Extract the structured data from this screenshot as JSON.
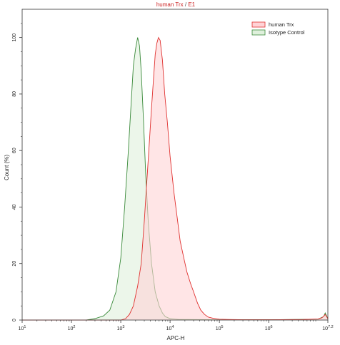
{
  "chart_data": {
    "type": "area",
    "title": {
      "part1": "human Trx",
      "separator": " / ",
      "part2": "E1"
    },
    "title_colors": {
      "part1": "#cc2222",
      "separator": "#555555",
      "part2": "#cc2222"
    },
    "xlabel": "APC-H",
    "ylabel": "Count (%)",
    "x_scale": "log",
    "xlim": [
      10,
      15848932
    ],
    "ylim": [
      0,
      110
    ],
    "x_ticks": [
      {
        "value": 10,
        "base": "10",
        "exp": "1"
      },
      {
        "value": 100,
        "base": "10",
        "exp": "2"
      },
      {
        "value": 1000,
        "base": "10",
        "exp": "3"
      },
      {
        "value": 10000,
        "base": "10",
        "exp": "4"
      },
      {
        "value": 100000,
        "base": "10",
        "exp": "5"
      },
      {
        "value": 1000000,
        "base": "10",
        "exp": "6"
      },
      {
        "value": 15848932,
        "base": "10",
        "exp": "7.2"
      }
    ],
    "y_ticks": [
      0,
      20,
      40,
      60,
      80,
      100
    ],
    "grid": false,
    "legend_position": "top-right",
    "series": [
      {
        "name": "human Trx",
        "color": "#e0312f",
        "fill": "#ffd3d6",
        "x": [
          10,
          1000,
          1250,
          1500,
          1800,
          2200,
          2600,
          3000,
          3400,
          3800,
          4200,
          4600,
          5000,
          5400,
          5800,
          6300,
          7000,
          7800,
          8800,
          10000,
          12000,
          14000,
          16000,
          19000,
          22000,
          26000,
          30000,
          36000,
          42000,
          50000,
          60000,
          75000,
          100000,
          150000,
          300000,
          1000000,
          5000000,
          10000000,
          12000000,
          13000000,
          14000000,
          15848932
        ],
        "values": [
          0,
          0,
          0.5,
          2,
          5,
          12,
          20,
          35,
          50,
          63,
          75,
          85,
          94,
          98,
          100,
          99,
          92,
          80,
          70,
          58,
          45,
          36,
          28,
          22,
          17,
          13,
          10,
          6,
          3.5,
          2,
          1,
          0.6,
          0.3,
          0.2,
          0.1,
          0.1,
          0.2,
          0.4,
          0.8,
          1.3,
          2,
          0.5
        ]
      },
      {
        "name": "Isotype Control",
        "color": "#3a8a3a",
        "fill": "#dff0dc",
        "x": [
          10,
          200,
          300,
          450,
          600,
          800,
          1000,
          1200,
          1400,
          1600,
          1800,
          2000,
          2200,
          2400,
          2600,
          2900,
          3200,
          3600,
          4200,
          5000,
          6000,
          7000,
          8000,
          10000,
          15000,
          100000,
          1000000,
          10000000,
          13000000,
          14000000,
          15848932
        ],
        "values": [
          0,
          0,
          0.5,
          1.5,
          3.5,
          10,
          22,
          40,
          58,
          75,
          90,
          96,
          100,
          97,
          88,
          70,
          52,
          35,
          20,
          10,
          5,
          2.5,
          1.2,
          0.5,
          0.2,
          0.1,
          0.1,
          0.3,
          1.2,
          2.5,
          0.5
        ]
      }
    ]
  }
}
